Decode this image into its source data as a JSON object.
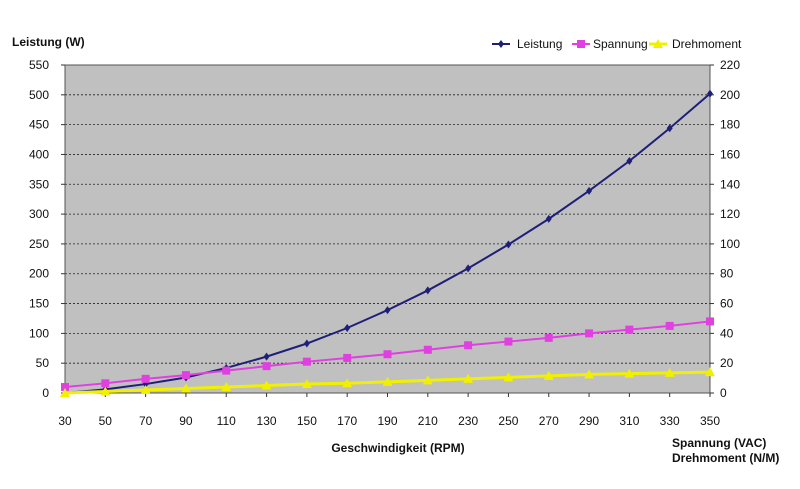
{
  "chart_data": {
    "type": "line",
    "y_left_label": "Leistung (W)",
    "x_label": "Geschwindigkeit (RPM)",
    "y_right_label_1": "Spannung (VAC)",
    "y_right_label_2": "Drehmoment (N/M)",
    "x": [
      30,
      50,
      70,
      90,
      110,
      130,
      150,
      170,
      190,
      210,
      230,
      250,
      270,
      290,
      310,
      330,
      350
    ],
    "xlim": [
      30,
      350
    ],
    "ylim_left": [
      0,
      550
    ],
    "ylim_right": [
      0,
      220
    ],
    "y_left_ticks": [
      "0",
      "50",
      "100",
      "150",
      "200",
      "250",
      "300",
      "350",
      "400",
      "450",
      "500",
      "550"
    ],
    "y_right_ticks": [
      "0",
      "20",
      "40",
      "60",
      "80",
      "100",
      "120",
      "140",
      "160",
      "180",
      "200",
      "220"
    ],
    "x_ticks": [
      "30",
      "50",
      "70",
      "90",
      "110",
      "130",
      "150",
      "170",
      "190",
      "210",
      "230",
      "250",
      "270",
      "290",
      "310",
      "330",
      "350"
    ],
    "grid": true,
    "legend_position": "top-right",
    "series": [
      {
        "name": "Leistung",
        "axis": "left",
        "color": "#1f1f7a",
        "marker": "diamond",
        "values": [
          0,
          6,
          15,
          26,
          42,
          61,
          83,
          109,
          139,
          172,
          209,
          249,
          292,
          339,
          389,
          444,
          502
        ]
      },
      {
        "name": "Spannung",
        "axis": "right",
        "color": "#e040e0",
        "marker": "square",
        "values": [
          4,
          6.5,
          9.5,
          12,
          15,
          18,
          21,
          23.5,
          26,
          29,
          32,
          34.5,
          37,
          40,
          42.5,
          45,
          48
        ]
      },
      {
        "name": "Drehmoment",
        "axis": "right",
        "color": "#f0f000",
        "marker": "triangle",
        "values": [
          0,
          1,
          2,
          3,
          4,
          5,
          6,
          6.5,
          7.5,
          8.5,
          9.5,
          10.5,
          11.5,
          12.5,
          13,
          13.5,
          14
        ]
      }
    ]
  }
}
